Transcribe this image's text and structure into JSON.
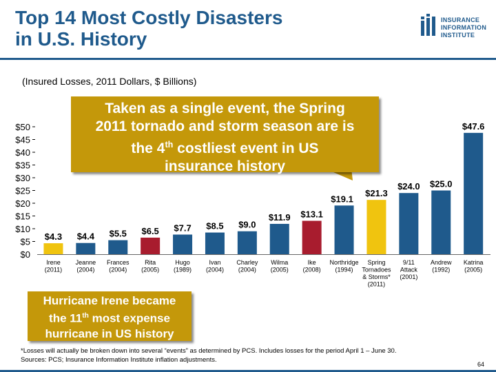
{
  "slide": {
    "title_line1": "Top 14 Most Costly Disasters",
    "title_line2": "in U.S. History",
    "subtitle": "(Insured Losses, 2011 Dollars, $ Billions)",
    "page_number": "64"
  },
  "logo": {
    "line1": "INSURANCE",
    "line2": "INFORMATION",
    "line3": "INSTITUTE"
  },
  "callouts": {
    "top": {
      "line1": "Taken as a single event, the Spring",
      "line2": "2011 tornado and storm season are is",
      "line3_pre": "the 4",
      "line3_sup": "th",
      "line3_post": " costliest event in US",
      "line4": "insurance history"
    },
    "irene": {
      "line1": "Hurricane Irene became",
      "line2_pre": "the 11",
      "line2_sup": "th",
      "line2_post": " most expense",
      "line3": "hurricane in US history"
    }
  },
  "footnote": {
    "line1": "*Losses will actually be broken down into several “events” as determined by PCS.  Includes losses for the period April 1 – June 30.",
    "line2": "Sources: PCS; Insurance Information Institute inflation adjustments."
  },
  "colors": {
    "blue": "#1f5a8c",
    "yellow": "#f0c40f",
    "red": "#a81c2e",
    "callout": "#c4980a"
  },
  "chart_data": {
    "type": "bar",
    "title": "Top 14 Most Costly Disasters in U.S. History",
    "ylabel": "Insured Losses, 2011 Dollars, $ Billions",
    "ylim": [
      0,
      50
    ],
    "yticks": [
      {
        "value": 0,
        "label": "$0"
      },
      {
        "value": 5,
        "label": "$5"
      },
      {
        "value": 10,
        "label": "$10"
      },
      {
        "value": 15,
        "label": "$15"
      },
      {
        "value": 20,
        "label": "$20"
      },
      {
        "value": 25,
        "label": "$25"
      },
      {
        "value": 30,
        "label": "$30"
      },
      {
        "value": 35,
        "label": "$35"
      },
      {
        "value": 40,
        "label": "$40"
      },
      {
        "value": 45,
        "label": "$45"
      },
      {
        "value": 50,
        "label": "$50"
      }
    ],
    "bars": [
      {
        "name": "Irene",
        "year": "(2011)",
        "value": 4.3,
        "label": "$4.3",
        "color": "#f0c40f"
      },
      {
        "name": "Jeanne",
        "year": "(2004)",
        "value": 4.4,
        "label": "$4.4",
        "color": "#1f5a8c"
      },
      {
        "name": "Frances",
        "year": "(2004)",
        "value": 5.5,
        "label": "$5.5",
        "color": "#1f5a8c"
      },
      {
        "name": "Rita",
        "year": "(2005)",
        "value": 6.5,
        "label": "$6.5",
        "color": "#a81c2e"
      },
      {
        "name": "Hugo",
        "year": "(1989)",
        "value": 7.7,
        "label": "$7.7",
        "color": "#1f5a8c"
      },
      {
        "name": "Ivan",
        "year": "(2004)",
        "value": 8.5,
        "label": "$8.5",
        "color": "#1f5a8c"
      },
      {
        "name": "Charley",
        "year": "(2004)",
        "value": 9.0,
        "label": "$9.0",
        "color": "#1f5a8c"
      },
      {
        "name": "Wilma",
        "year": "(2005)",
        "value": 11.9,
        "label": "$11.9",
        "color": "#1f5a8c"
      },
      {
        "name": "Ike",
        "year": "(2008)",
        "value": 13.1,
        "label": "$13.1",
        "color": "#a81c2e"
      },
      {
        "name": "Northridge",
        "year": "(1994)",
        "value": 19.1,
        "label": "$19.1",
        "color": "#1f5a8c"
      },
      {
        "name": "Spring",
        "name2": "Tornadoes",
        "name3": "& Storms*",
        "name4": "(2011)",
        "value": 21.3,
        "label": "$21.3",
        "color": "#f0c40f"
      },
      {
        "name": "9/11",
        "name2": "Attack",
        "year": "(2001)",
        "value": 24.0,
        "label": "$24.0",
        "color": "#1f5a8c"
      },
      {
        "name": "Andrew",
        "year": "(1992)",
        "value": 25.0,
        "label": "$25.0",
        "color": "#1f5a8c"
      },
      {
        "name": "Katrina",
        "year": "(2005)",
        "value": 47.6,
        "label": "$47.6",
        "color": "#1f5a8c"
      }
    ]
  }
}
